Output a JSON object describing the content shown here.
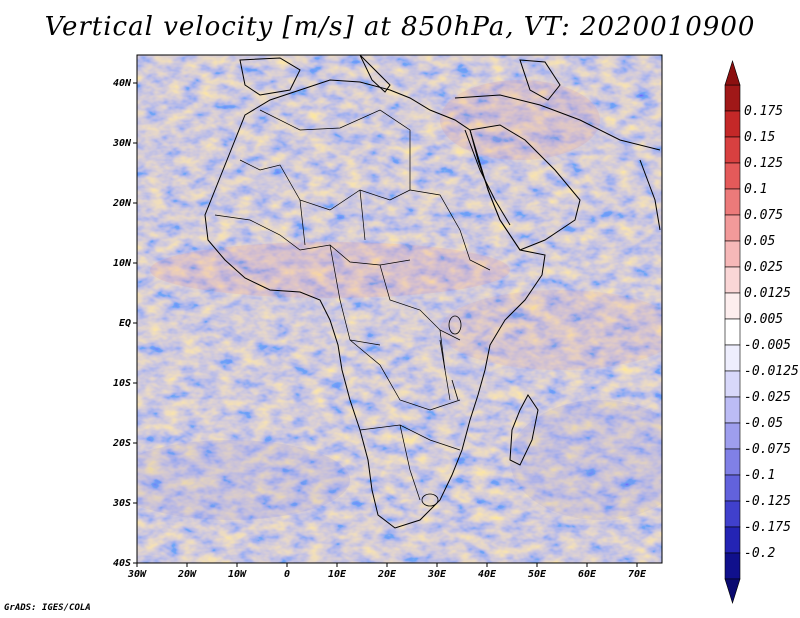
{
  "title": "Vertical velocity [m/s] at 850hPa, VT: 2020010900",
  "footer": "GrADS: IGES/COLA",
  "map": {
    "lat_ticks": [
      "40N",
      "30N",
      "20N",
      "10N",
      "EQ",
      "10S",
      "20S",
      "30S",
      "40S"
    ],
    "lon_ticks": [
      "30W",
      "20W",
      "10W",
      "0",
      "10E",
      "20E",
      "30E",
      "40E",
      "50E",
      "60E",
      "70E"
    ]
  },
  "colorbar": {
    "labels": [
      "0.175",
      "0.15",
      "0.125",
      "0.1",
      "0.075",
      "0.05",
      "0.025",
      "0.0125",
      "0.005",
      "-0.005",
      "-0.0125",
      "-0.025",
      "-0.05",
      "-0.075",
      "-0.1",
      "-0.125",
      "-0.175",
      "-0.2"
    ],
    "colors": [
      "#a01818",
      "#c42828",
      "#d84040",
      "#e45a5a",
      "#ec7a7a",
      "#f29a9a",
      "#f6b8b8",
      "#fad6d6",
      "#fdeeee",
      "#ffffff",
      "#eeeefd",
      "#d8d8fa",
      "#bcbcf5",
      "#9e9eee",
      "#8080e6",
      "#6262dc",
      "#4040cc",
      "#2424b4",
      "#10108c"
    ]
  }
}
